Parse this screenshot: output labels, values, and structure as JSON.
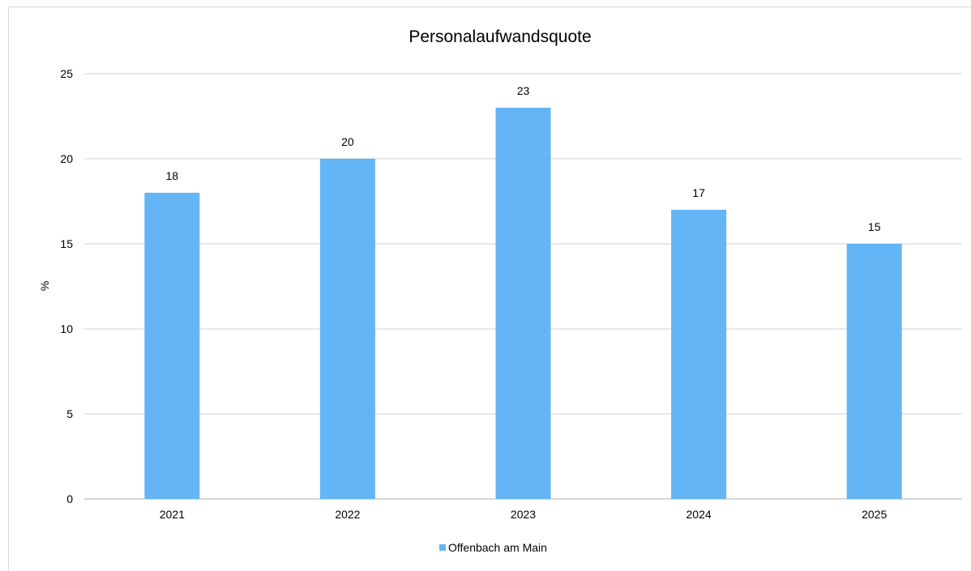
{
  "chart_data": {
    "type": "bar",
    "title": "Personalaufwandsquote",
    "xlabel": "",
    "ylabel": "%",
    "categories": [
      "2021",
      "2022",
      "2023",
      "2024",
      "2025"
    ],
    "series": [
      {
        "name": "Offenbach am Main",
        "values": [
          18,
          20,
          23,
          17,
          15
        ],
        "color": "#64b5f6"
      }
    ],
    "ylim": [
      0,
      25
    ],
    "yticks": [
      0,
      5,
      10,
      15,
      20,
      25
    ],
    "grid": true,
    "legend_position": "bottom",
    "data_labels": true
  },
  "colors": {
    "bar": "#64b5f6",
    "grid": "#d9d9d9",
    "axis": "#bfbfbf"
  }
}
